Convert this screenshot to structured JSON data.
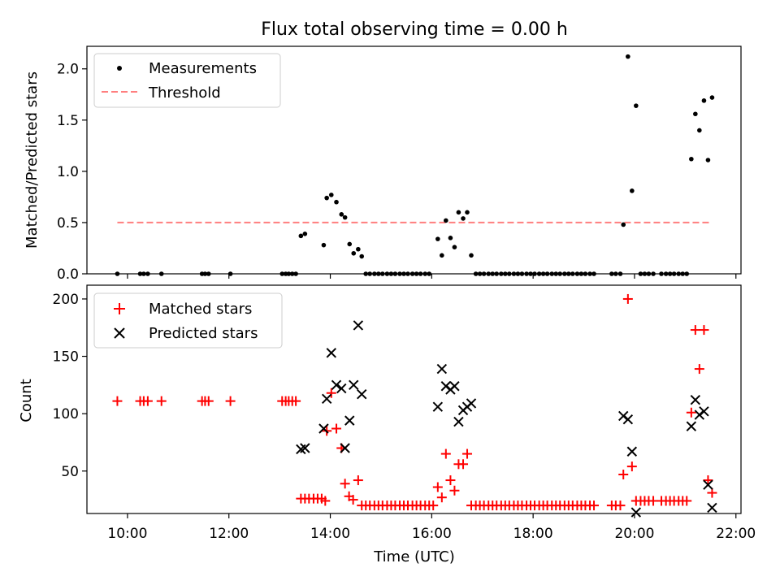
{
  "chart_data": [
    {
      "type": "scatter",
      "title": "Flux total observing time = 0.00 h",
      "xlabel": "",
      "ylabel": "Matched/Predicted stars",
      "xlim": [
        9.2,
        22.1
      ],
      "ylim": [
        0,
        2.22
      ],
      "x_unit": "hours UTC",
      "x_ticks": [
        "10:00",
        "12:00",
        "14:00",
        "16:00",
        "18:00",
        "20:00",
        "22:00"
      ],
      "y_ticks": [
        "0.0",
        "0.5",
        "1.0",
        "1.5",
        "2.0"
      ],
      "legend": {
        "placement": "upper-left",
        "entries": [
          "Measurements",
          "Threshold"
        ]
      },
      "threshold": {
        "name": "Threshold",
        "y": 0.5,
        "x_start": 9.8,
        "x_end": 21.5,
        "color": "#ff7f7f",
        "style": "dashed"
      },
      "series": [
        {
          "name": "Measurements",
          "marker": "dot",
          "color": "#000000",
          "points": [
            [
              9.8,
              0
            ],
            [
              10.25,
              0
            ],
            [
              10.32,
              0
            ],
            [
              10.4,
              0
            ],
            [
              10.67,
              0
            ],
            [
              11.47,
              0
            ],
            [
              11.53,
              0
            ],
            [
              11.6,
              0
            ],
            [
              12.03,
              0
            ],
            [
              13.05,
              0
            ],
            [
              13.12,
              0
            ],
            [
              13.18,
              0
            ],
            [
              13.25,
              0
            ],
            [
              13.32,
              0
            ],
            [
              13.42,
              0.37
            ],
            [
              13.5,
              0.39
            ],
            [
              13.87,
              0.28
            ],
            [
              13.93,
              0.74
            ],
            [
              14.02,
              0.77
            ],
            [
              14.12,
              0.7
            ],
            [
              14.22,
              0.58
            ],
            [
              14.29,
              0.55
            ],
            [
              14.38,
              0.29
            ],
            [
              14.46,
              0.2
            ],
            [
              14.55,
              0.24
            ],
            [
              14.62,
              0.17
            ],
            [
              14.7,
              0
            ],
            [
              14.78,
              0
            ],
            [
              14.87,
              0
            ],
            [
              14.95,
              0
            ],
            [
              15.03,
              0
            ],
            [
              15.12,
              0
            ],
            [
              15.2,
              0
            ],
            [
              15.28,
              0
            ],
            [
              15.37,
              0
            ],
            [
              15.45,
              0
            ],
            [
              15.53,
              0
            ],
            [
              15.62,
              0
            ],
            [
              15.7,
              0
            ],
            [
              15.78,
              0
            ],
            [
              15.87,
              0
            ],
            [
              15.95,
              0
            ],
            [
              16.12,
              0.34
            ],
            [
              16.2,
              0.18
            ],
            [
              16.28,
              0.52
            ],
            [
              16.37,
              0.35
            ],
            [
              16.45,
              0.26
            ],
            [
              16.53,
              0.6
            ],
            [
              16.62,
              0.54
            ],
            [
              16.7,
              0.6
            ],
            [
              16.78,
              0.18
            ],
            [
              16.87,
              0
            ],
            [
              16.95,
              0
            ],
            [
              17.03,
              0
            ],
            [
              17.12,
              0
            ],
            [
              17.2,
              0
            ],
            [
              17.28,
              0
            ],
            [
              17.37,
              0
            ],
            [
              17.45,
              0
            ],
            [
              17.53,
              0
            ],
            [
              17.62,
              0
            ],
            [
              17.7,
              0
            ],
            [
              17.78,
              0
            ],
            [
              17.87,
              0
            ],
            [
              17.95,
              0
            ],
            [
              18.03,
              0
            ],
            [
              18.12,
              0
            ],
            [
              18.2,
              0
            ],
            [
              18.28,
              0
            ],
            [
              18.37,
              0
            ],
            [
              18.45,
              0
            ],
            [
              18.53,
              0
            ],
            [
              18.62,
              0
            ],
            [
              18.7,
              0
            ],
            [
              18.78,
              0
            ],
            [
              18.87,
              0
            ],
            [
              18.95,
              0
            ],
            [
              19.03,
              0
            ],
            [
              19.12,
              0
            ],
            [
              19.2,
              0
            ],
            [
              19.55,
              0
            ],
            [
              19.63,
              0
            ],
            [
              19.72,
              0
            ],
            [
              19.78,
              0.48
            ],
            [
              19.87,
              2.12
            ],
            [
              19.95,
              0.81
            ],
            [
              20.03,
              1.64
            ],
            [
              20.12,
              0
            ],
            [
              20.2,
              0
            ],
            [
              20.28,
              0
            ],
            [
              20.37,
              0
            ],
            [
              20.53,
              0
            ],
            [
              20.62,
              0
            ],
            [
              20.7,
              0
            ],
            [
              20.78,
              0
            ],
            [
              20.87,
              0
            ],
            [
              20.95,
              0
            ],
            [
              21.03,
              0
            ],
            [
              21.12,
              1.12
            ],
            [
              21.2,
              1.56
            ],
            [
              21.28,
              1.4
            ],
            [
              21.37,
              1.69
            ],
            [
              21.45,
              1.11
            ],
            [
              21.53,
              1.72
            ]
          ]
        }
      ]
    },
    {
      "type": "scatter",
      "title": "",
      "xlabel": "Time (UTC)",
      "ylabel": "Count",
      "xlim": [
        9.2,
        22.1
      ],
      "ylim": [
        13,
        212
      ],
      "x_unit": "hours UTC",
      "x_ticks": [
        "10:00",
        "12:00",
        "14:00",
        "16:00",
        "18:00",
        "20:00",
        "22:00"
      ],
      "y_ticks": [
        "50",
        "100",
        "150",
        "200"
      ],
      "legend": {
        "placement": "upper-left",
        "entries": [
          "Matched stars",
          "Predicted stars"
        ]
      },
      "series": [
        {
          "name": "Matched stars",
          "marker": "plus",
          "color": "#ff0000",
          "points": [
            [
              9.8,
              111
            ],
            [
              10.25,
              111
            ],
            [
              10.32,
              111
            ],
            [
              10.4,
              111
            ],
            [
              10.67,
              111
            ],
            [
              11.47,
              111
            ],
            [
              11.53,
              111
            ],
            [
              11.6,
              111
            ],
            [
              12.03,
              111
            ],
            [
              13.05,
              111
            ],
            [
              13.12,
              111
            ],
            [
              13.18,
              111
            ],
            [
              13.25,
              111
            ],
            [
              13.32,
              111
            ],
            [
              13.42,
              26
            ],
            [
              13.5,
              26
            ],
            [
              13.58,
              26
            ],
            [
              13.67,
              26
            ],
            [
              13.75,
              26
            ],
            [
              13.83,
              26
            ],
            [
              13.9,
              24
            ],
            [
              13.93,
              85
            ],
            [
              14.02,
              118
            ],
            [
              14.12,
              87
            ],
            [
              14.22,
              70
            ],
            [
              14.29,
              39
            ],
            [
              14.37,
              28
            ],
            [
              14.45,
              25
            ],
            [
              14.55,
              42
            ],
            [
              14.62,
              20
            ],
            [
              14.7,
              20
            ],
            [
              14.78,
              20
            ],
            [
              14.87,
              20
            ],
            [
              14.95,
              20
            ],
            [
              15.03,
              20
            ],
            [
              15.12,
              20
            ],
            [
              15.2,
              20
            ],
            [
              15.28,
              20
            ],
            [
              15.37,
              20
            ],
            [
              15.45,
              20
            ],
            [
              15.53,
              20
            ],
            [
              15.62,
              20
            ],
            [
              15.7,
              20
            ],
            [
              15.78,
              20
            ],
            [
              15.87,
              20
            ],
            [
              15.95,
              20
            ],
            [
              16.03,
              20
            ],
            [
              16.12,
              36
            ],
            [
              16.2,
              27
            ],
            [
              16.28,
              65
            ],
            [
              16.37,
              42
            ],
            [
              16.45,
              33
            ],
            [
              16.53,
              56
            ],
            [
              16.62,
              56
            ],
            [
              16.7,
              65
            ],
            [
              16.78,
              20
            ],
            [
              16.87,
              20
            ],
            [
              16.95,
              20
            ],
            [
              17.03,
              20
            ],
            [
              17.12,
              20
            ],
            [
              17.2,
              20
            ],
            [
              17.28,
              20
            ],
            [
              17.37,
              20
            ],
            [
              17.45,
              20
            ],
            [
              17.53,
              20
            ],
            [
              17.62,
              20
            ],
            [
              17.7,
              20
            ],
            [
              17.78,
              20
            ],
            [
              17.87,
              20
            ],
            [
              17.95,
              20
            ],
            [
              18.03,
              20
            ],
            [
              18.12,
              20
            ],
            [
              18.2,
              20
            ],
            [
              18.28,
              20
            ],
            [
              18.37,
              20
            ],
            [
              18.45,
              20
            ],
            [
              18.53,
              20
            ],
            [
              18.62,
              20
            ],
            [
              18.7,
              20
            ],
            [
              18.78,
              20
            ],
            [
              18.87,
              20
            ],
            [
              18.95,
              20
            ],
            [
              19.03,
              20
            ],
            [
              19.12,
              20
            ],
            [
              19.2,
              20
            ],
            [
              19.55,
              20
            ],
            [
              19.63,
              20
            ],
            [
              19.72,
              20
            ],
            [
              19.78,
              47
            ],
            [
              19.87,
              200
            ],
            [
              19.95,
              54
            ],
            [
              20.03,
              24
            ],
            [
              20.12,
              24
            ],
            [
              20.2,
              24
            ],
            [
              20.28,
              24
            ],
            [
              20.37,
              24
            ],
            [
              20.53,
              24
            ],
            [
              20.62,
              24
            ],
            [
              20.7,
              24
            ],
            [
              20.78,
              24
            ],
            [
              20.87,
              24
            ],
            [
              20.95,
              24
            ],
            [
              21.03,
              24
            ],
            [
              21.12,
              101
            ],
            [
              21.2,
              173
            ],
            [
              21.28,
              139
            ],
            [
              21.37,
              173
            ],
            [
              21.45,
              42
            ],
            [
              21.53,
              31
            ]
          ]
        },
        {
          "name": "Predicted stars",
          "marker": "x",
          "color": "#000000",
          "points": [
            [
              13.42,
              69
            ],
            [
              13.5,
              70
            ],
            [
              13.87,
              87
            ],
            [
              13.93,
              113
            ],
            [
              14.02,
              153
            ],
            [
              14.12,
              125
            ],
            [
              14.22,
              122
            ],
            [
              14.29,
              70
            ],
            [
              14.38,
              94
            ],
            [
              14.46,
              125
            ],
            [
              14.55,
              177
            ],
            [
              14.62,
              117
            ],
            [
              16.12,
              106
            ],
            [
              16.2,
              139
            ],
            [
              16.28,
              124
            ],
            [
              16.37,
              121
            ],
            [
              16.45,
              124
            ],
            [
              16.53,
              93
            ],
            [
              16.62,
              103
            ],
            [
              16.7,
              106
            ],
            [
              16.78,
              109
            ],
            [
              19.78,
              98
            ],
            [
              19.87,
              95
            ],
            [
              19.95,
              67
            ],
            [
              20.03,
              14
            ],
            [
              21.12,
              89
            ],
            [
              21.2,
              112
            ],
            [
              21.28,
              99
            ],
            [
              21.37,
              102
            ],
            [
              21.45,
              38
            ],
            [
              21.53,
              18
            ]
          ]
        }
      ]
    }
  ]
}
